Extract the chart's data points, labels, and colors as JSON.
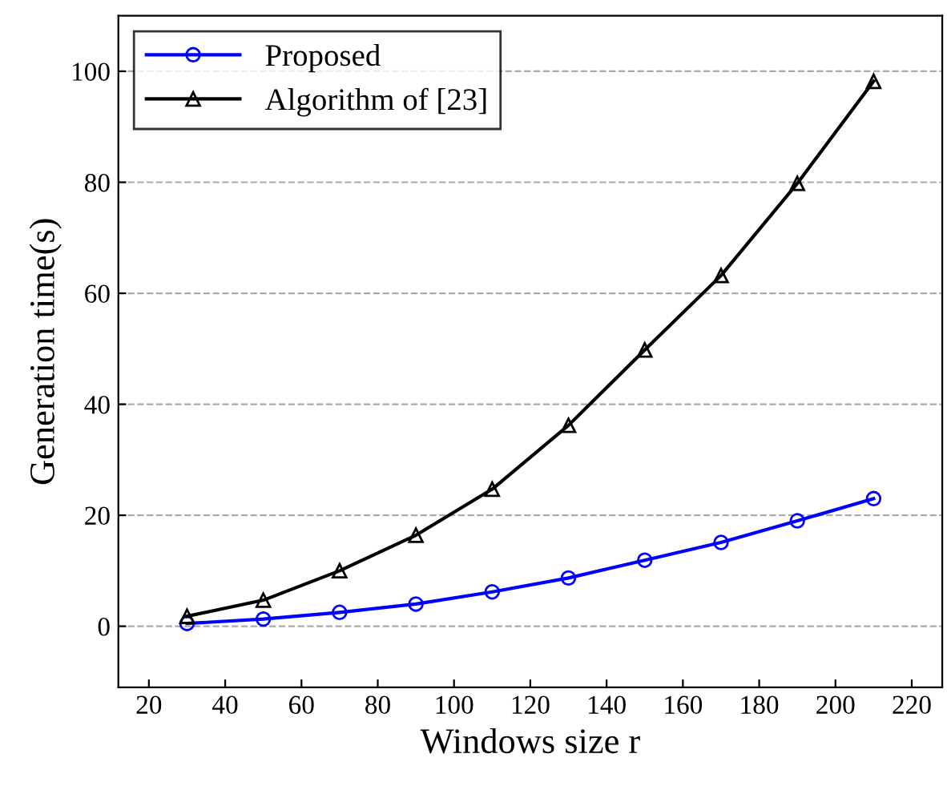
{
  "chart_data": {
    "type": "line",
    "xlabel": "Windows size r",
    "ylabel": "Generation time(s)",
    "x": [
      30,
      50,
      70,
      90,
      110,
      130,
      150,
      170,
      190,
      210
    ],
    "series": [
      {
        "name": "Proposed",
        "color": "#0000ff",
        "marker": "circle",
        "values": [
          0.5,
          1.3,
          2.5,
          4,
          6.2,
          8.7,
          11.9,
          15.1,
          19,
          23
        ]
      },
      {
        "name": "Algorithm of [23]",
        "color": "#000000",
        "marker": "triangle",
        "values": [
          1.8,
          4.7,
          10,
          16.4,
          24.7,
          36.2,
          49.8,
          63.2,
          79.8,
          98.2
        ]
      }
    ],
    "xlim": [
      12,
      228
    ],
    "xticks": [
      20,
      40,
      60,
      80,
      100,
      120,
      140,
      160,
      180,
      200,
      220
    ],
    "ylim": [
      -11,
      110
    ],
    "yticks": [
      0,
      20,
      40,
      60,
      80,
      100
    ],
    "grid": "y",
    "legend": "top left",
    "line_style": "solid"
  }
}
